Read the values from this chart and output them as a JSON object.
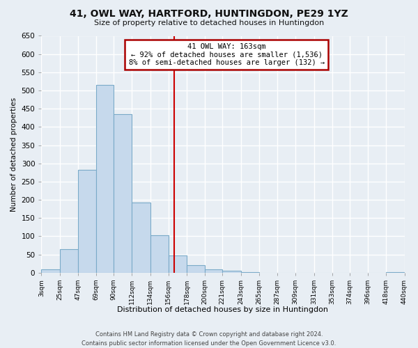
{
  "title": "41, OWL WAY, HARTFORD, HUNTINGDON, PE29 1YZ",
  "subtitle": "Size of property relative to detached houses in Huntingdon",
  "xlabel": "Distribution of detached houses by size in Huntingdon",
  "ylabel": "Number of detached properties",
  "bar_edges": [
    3,
    25,
    47,
    69,
    90,
    112,
    134,
    156,
    178,
    200,
    221,
    243,
    265,
    287,
    309,
    331,
    353,
    374,
    396,
    418,
    440
  ],
  "bar_heights": [
    10,
    65,
    283,
    515,
    435,
    192,
    103,
    47,
    20,
    10,
    5,
    2,
    0,
    0,
    0,
    0,
    0,
    0,
    0,
    2
  ],
  "bar_color": "#c6d9ec",
  "bar_edge_color": "#7aaac8",
  "property_size": 163,
  "vline_color": "#cc0000",
  "ann_line1": "41 OWL WAY: 163sqm",
  "ann_line2": "← 92% of detached houses are smaller (1,536)",
  "ann_line3": "8% of semi-detached houses are larger (132) →",
  "annotation_box_color": "#ffffff",
  "annotation_border_color": "#aa0000",
  "tick_labels": [
    "3sqm",
    "25sqm",
    "47sqm",
    "69sqm",
    "90sqm",
    "112sqm",
    "134sqm",
    "156sqm",
    "178sqm",
    "200sqm",
    "221sqm",
    "243sqm",
    "265sqm",
    "287sqm",
    "309sqm",
    "331sqm",
    "353sqm",
    "374sqm",
    "396sqm",
    "418sqm",
    "440sqm"
  ],
  "ylim": [
    0,
    650
  ],
  "yticks": [
    0,
    50,
    100,
    150,
    200,
    250,
    300,
    350,
    400,
    450,
    500,
    550,
    600,
    650
  ],
  "footer_line1": "Contains HM Land Registry data © Crown copyright and database right 2024.",
  "footer_line2": "Contains public sector information licensed under the Open Government Licence v3.0.",
  "bg_color": "#e8eef4",
  "grid_color": "#ffffff"
}
